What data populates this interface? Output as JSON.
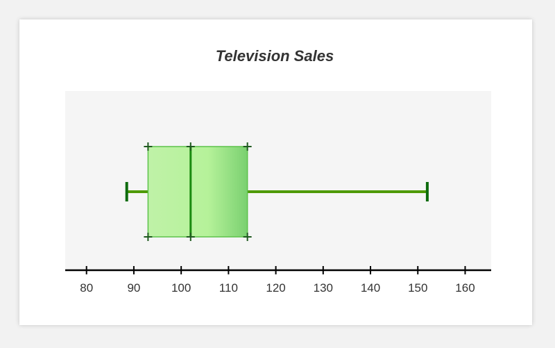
{
  "chart_data": {
    "type": "boxplot",
    "title": "Television Sales",
    "xlabel": "",
    "ylabel": "",
    "orientation": "horizontal",
    "xlim": [
      75.5,
      165.5
    ],
    "ticks": [
      80,
      90,
      100,
      110,
      120,
      130,
      140,
      150,
      160
    ],
    "box": {
      "min": 88.5,
      "q1": 93,
      "median": 102,
      "q3": 114,
      "max": 152
    },
    "grid": false,
    "legend": "none",
    "colors": {
      "plot_background": "#f5f5f5",
      "box_fill_light": "#b6f29a",
      "box_fill_dark": "#7ad070",
      "box_stroke": "#5cc24a",
      "whisker": "#4e9a06",
      "median": "#1a8a10",
      "cap": "#0d6b0d",
      "marker": "#1f5a1f",
      "axis": "#000000",
      "text": "#333333"
    }
  }
}
